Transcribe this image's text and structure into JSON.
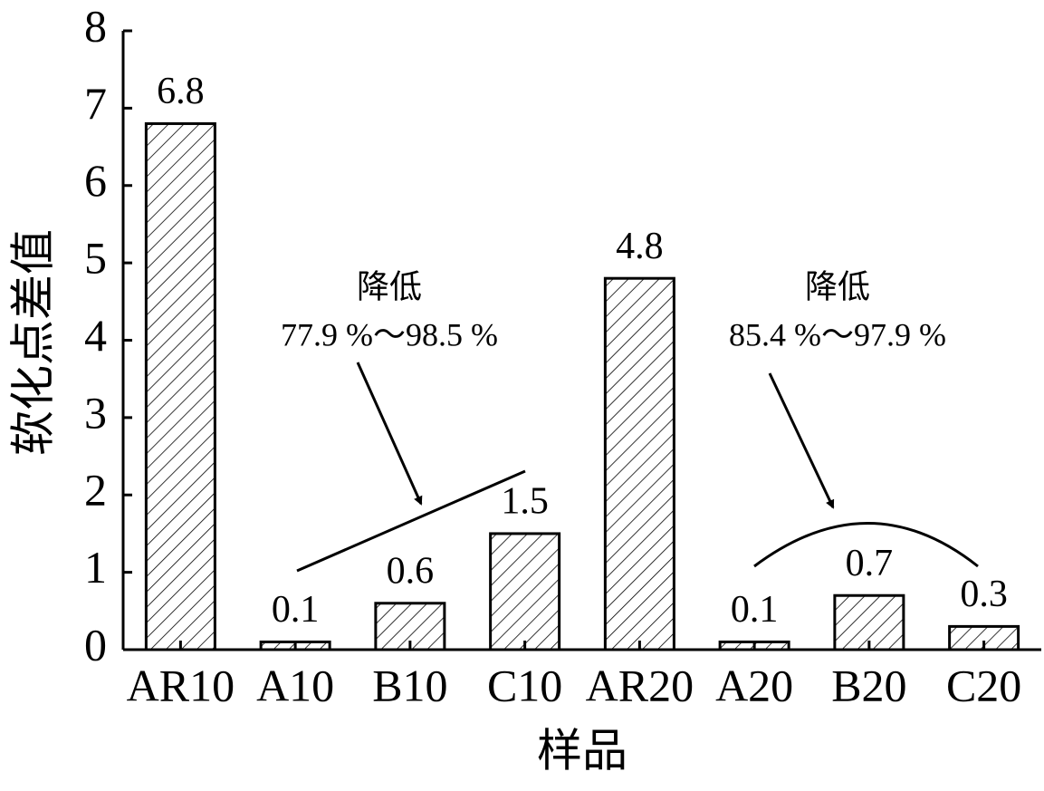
{
  "chart_data": {
    "type": "bar",
    "x_label": "样品",
    "y_label": "软化点差值",
    "categories": [
      "AR10",
      "A10",
      "B10",
      "C10",
      "AR20",
      "A20",
      "B20",
      "C20"
    ],
    "values": [
      6.8,
      0.1,
      0.6,
      1.5,
      4.8,
      0.1,
      0.7,
      0.3
    ],
    "color": "#000000",
    "ylim": [
      0,
      8
    ],
    "yticks": [
      0,
      1,
      2,
      3,
      4,
      5,
      6,
      7,
      8
    ],
    "grid": false,
    "annotations": [
      "降低",
      "77.9 %～98.5 %",
      "降低",
      "85.4 %～97.9 %"
    ]
  }
}
